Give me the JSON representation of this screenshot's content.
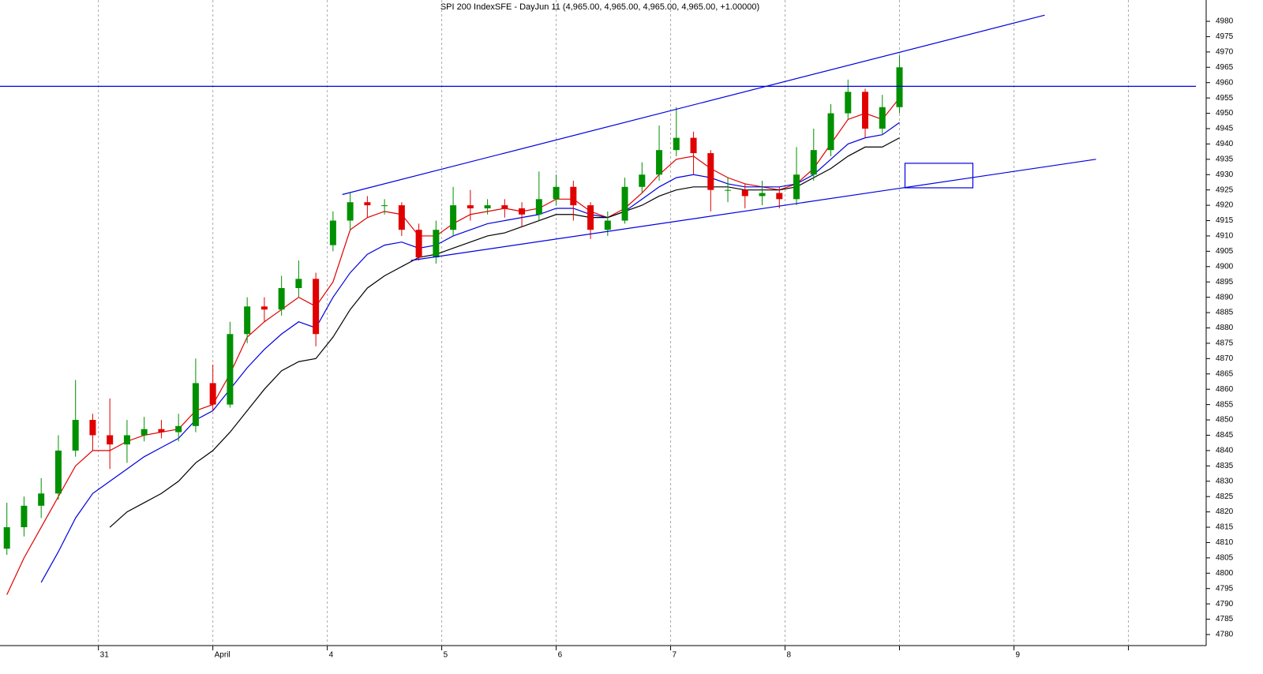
{
  "chart_data": {
    "type": "candlestick",
    "title": "SPI 200 IndexSFE - DayJun 11 (4,965.00, 4,965.00, 4,965.00, 4,965.00, +1.00000)",
    "up_color": "#009000",
    "down_color": "#e00000",
    "x": [
      0.2,
      0.35,
      0.5,
      0.65,
      0.8,
      0.95,
      1.1,
      1.25,
      1.4,
      1.55,
      1.7,
      1.85,
      2.0,
      2.15,
      2.3,
      2.45,
      2.6,
      2.75,
      2.9,
      3.05,
      3.2,
      3.35,
      3.5,
      3.65,
      3.8,
      3.95,
      4.1,
      4.25,
      4.4,
      4.55,
      4.7,
      4.85,
      5.0,
      5.15,
      5.3,
      5.45,
      5.6,
      5.75,
      5.9,
      6.05,
      6.2,
      6.35,
      6.5,
      6.65,
      6.8,
      6.95,
      7.1,
      7.25,
      7.4,
      7.55,
      7.7,
      7.85,
      8.0
    ],
    "open": [
      4808,
      4815,
      4822,
      4826,
      4840,
      4850,
      4845,
      4842,
      4845,
      4847,
      4846,
      4848,
      4862,
      4855,
      4878,
      4887,
      4886,
      4893,
      4896,
      4907,
      4915,
      4921,
      4920,
      4920,
      4912,
      4903,
      4912,
      4920,
      4919,
      4920,
      4919,
      4917,
      4922,
      4926,
      4920,
      4912,
      4915,
      4926,
      4930,
      4938,
      4942,
      4937,
      4925,
      4925,
      4923,
      4924,
      4922,
      4930,
      4938,
      4950,
      4957,
      4945,
      4952
    ],
    "high": [
      4823,
      4825,
      4831,
      4845,
      4863,
      4852,
      4857,
      4850,
      4851,
      4850,
      4852,
      4870,
      4868,
      4882,
      4890,
      4890,
      4897,
      4902,
      4898,
      4918,
      4924,
      4923,
      4922,
      4921,
      4914,
      4915,
      4926,
      4925,
      4922,
      4922,
      4921,
      4931,
      4930,
      4928,
      4921,
      4918,
      4929,
      4934,
      4946,
      4952,
      4944,
      4938,
      4929,
      4927,
      4928,
      4926,
      4939,
      4945,
      4953,
      4961,
      4958,
      4956,
      4969
    ],
    "low": [
      4806,
      4812,
      4818,
      4824,
      4838,
      4840,
      4834,
      4836,
      4843,
      4844,
      4843,
      4846,
      4853,
      4854,
      4875,
      4882,
      4884,
      4890,
      4874,
      4905,
      4912,
      4916,
      4917,
      4910,
      4902,
      4901,
      4910,
      4915,
      4917,
      4916,
      4913,
      4915,
      4920,
      4915,
      4909,
      4910,
      4914,
      4924,
      4928,
      4936,
      4930,
      4918,
      4921,
      4919,
      4920,
      4919,
      4920,
      4928,
      4936,
      4948,
      4942,
      4943,
      4950
    ],
    "close": [
      4815,
      4822,
      4826,
      4840,
      4850,
      4845,
      4842,
      4845,
      4847,
      4846,
      4848,
      4862,
      4855,
      4878,
      4887,
      4886,
      4893,
      4896,
      4878,
      4915,
      4921,
      4920,
      4920,
      4912,
      4903,
      4912,
      4920,
      4919,
      4920,
      4919,
      4917,
      4922,
      4926,
      4920,
      4912,
      4915,
      4926,
      4930,
      4938,
      4942,
      4937,
      4925,
      4925,
      4923,
      4924,
      4922,
      4930,
      4938,
      4950,
      4957,
      4945,
      4952,
      4965
    ],
    "series": [
      {
        "color": "#e00000",
        "values": [
          4793,
          4805,
          4815,
          4825,
          4835,
          4840,
          4840,
          4843,
          4845,
          4846,
          4847,
          4853,
          4855,
          4865,
          4877,
          4882,
          4886,
          4890,
          4887,
          4895,
          4912,
          4916,
          4918,
          4917,
          4910,
          4910,
          4914,
          4917,
          4918,
          4919,
          4918,
          4919,
          4922,
          4922,
          4918,
          4916,
          4919,
          4924,
          4930,
          4935,
          4936,
          4932,
          4929,
          4927,
          4926,
          4925,
          4927,
          4932,
          4940,
          4948,
          4950,
          4948,
          4955
        ]
      },
      {
        "color": "#0000e0",
        "values": [
          null,
          null,
          4797,
          4807,
          4818,
          4826,
          4830,
          4834,
          4838,
          4841,
          4844,
          4850,
          4853,
          4860,
          4867,
          4873,
          4878,
          4882,
          4880,
          4890,
          4898,
          4904,
          4907,
          4908,
          4906,
          4907,
          4910,
          4912,
          4914,
          4915,
          4916,
          4917,
          4919,
          4919,
          4917,
          4916,
          4918,
          4922,
          4926,
          4929,
          4930,
          4929,
          4927,
          4926,
          4926,
          4926,
          4927,
          4930,
          4935,
          4940,
          4942,
          4943,
          4947
        ]
      },
      {
        "color": "#000000",
        "values": [
          null,
          null,
          null,
          null,
          null,
          null,
          4815,
          4820,
          4823,
          4826,
          4830,
          4836,
          4840,
          4846,
          4853,
          4860,
          4866,
          4869,
          4870,
          4877,
          4886,
          4893,
          4897,
          4900,
          4903,
          4904,
          4906,
          4908,
          4910,
          4911,
          4913,
          4915,
          4917,
          4917,
          4916,
          4916,
          4918,
          4920,
          4923,
          4925,
          4926,
          4926,
          4926,
          4925,
          4925,
          4925,
          4926,
          4929,
          4932,
          4936,
          4939,
          4939,
          4942
        ]
      }
    ],
    "trendlines": [
      {
        "color": "#0000e0",
        "x": [
          3.131,
          9.269
        ],
        "y": [
          4923.5,
          4982
        ]
      },
      {
        "color": "#0000e0",
        "x": [
          3.731,
          9.717
        ],
        "y": [
          4902,
          4935
        ]
      },
      {
        "color": "#0000e0",
        "x": [
          0.14,
          10.59
        ],
        "y": [
          4958.8,
          4958.8
        ]
      }
    ],
    "box": {
      "color": "#0000e0",
      "x": [
        8.048,
        8.641
      ],
      "y": [
        4925.7,
        4933.7
      ]
    },
    "xlim": [
      0.14,
      10.59
    ],
    "ylim": [
      4780,
      4980
    ],
    "xticks": [
      {
        "value": 1,
        "label": "31"
      },
      {
        "value": 2,
        "label": "April"
      },
      {
        "value": 3,
        "label": "4"
      },
      {
        "value": 4,
        "label": "5"
      },
      {
        "value": 5,
        "label": "6"
      },
      {
        "value": 6,
        "label": "7"
      },
      {
        "value": 7,
        "label": "8"
      },
      {
        "value": 8,
        "label": null
      },
      {
        "value": 9,
        "label": "9"
      },
      {
        "value": 10,
        "label": null
      }
    ],
    "yticks": [
      4780,
      4785,
      4790,
      4795,
      4800,
      4805,
      4810,
      4815,
      4820,
      4825,
      4830,
      4835,
      4840,
      4845,
      4850,
      4855,
      4860,
      4865,
      4870,
      4875,
      4880,
      4885,
      4890,
      4895,
      4900,
      4905,
      4910,
      4915,
      4920,
      4925,
      4930,
      4935,
      4940,
      4945,
      4950,
      4955,
      4960,
      4965,
      4970,
      4975,
      4980
    ],
    "grid": "x"
  }
}
